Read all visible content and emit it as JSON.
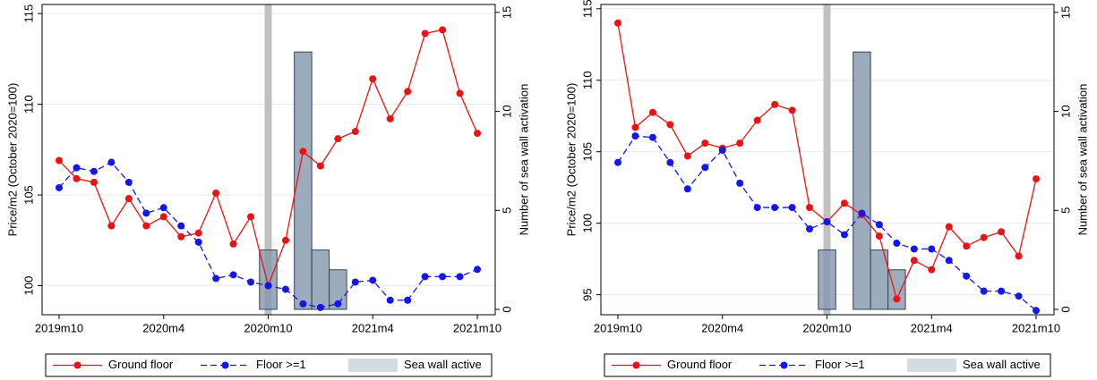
{
  "chart_data": [
    {
      "type": "line",
      "categories": [
        "2019m10",
        null,
        null,
        null,
        null,
        null,
        "2020m4",
        null,
        null,
        null,
        null,
        null,
        "2020m10",
        null,
        null,
        null,
        null,
        null,
        "2021m4",
        null,
        null,
        null,
        null,
        null,
        "2021m10"
      ],
      "y_label": "Price/m2 (October 2020=100)",
      "y2_label": "Number of sea wall activation",
      "ylim": [
        98.4,
        115.5
      ],
      "yticks": [
        100,
        105,
        110,
        115
      ],
      "y2lim": [
        -0.27,
        15.4
      ],
      "y2ticks": [
        0,
        5,
        10,
        15
      ],
      "grid": true,
      "legend": "bottom",
      "highlight_category": 12,
      "highlight_color": "#c0c0c0",
      "series": [
        {
          "name": "Sea wall active",
          "type": "bar",
          "axis": "y2",
          "color": "#8497ad",
          "values": [
            null,
            null,
            null,
            null,
            null,
            null,
            null,
            null,
            null,
            null,
            null,
            null,
            3,
            null,
            13,
            3,
            2,
            null,
            null,
            null,
            null,
            null,
            null,
            null,
            null
          ]
        },
        {
          "name": "Ground floor",
          "type": "line",
          "color": "#ee1111",
          "dash": false,
          "values": [
            106.9,
            105.9,
            105.7,
            103.3,
            104.8,
            103.3,
            103.8,
            102.7,
            102.9,
            105.1,
            102.3,
            103.8,
            100.0,
            102.5,
            107.4,
            106.6,
            108.1,
            108.5,
            111.4,
            109.2,
            110.7,
            113.9,
            114.1,
            110.6,
            108.4
          ]
        },
        {
          "name": "Floor >=1",
          "type": "line",
          "color": "#1515ee",
          "dash": true,
          "values": [
            105.4,
            106.5,
            106.3,
            106.8,
            105.7,
            104.0,
            104.3,
            103.3,
            102.4,
            100.4,
            100.6,
            100.2,
            100.0,
            99.8,
            99.0,
            98.8,
            99.0,
            100.2,
            100.3,
            99.2,
            99.2,
            100.5,
            100.5,
            100.5,
            100.9
          ]
        }
      ]
    },
    {
      "type": "line",
      "categories": [
        "2019m10",
        null,
        null,
        null,
        null,
        null,
        "2020m4",
        null,
        null,
        null,
        null,
        null,
        "2020m10",
        null,
        null,
        null,
        null,
        null,
        "2021m4",
        null,
        null,
        null,
        null,
        null,
        "2021m10"
      ],
      "y_label": "Price/m2 (October 2020=100)",
      "y2_label": "Number of sea wall activation",
      "ylim": [
        93.6,
        115.3
      ],
      "yticks": [
        95,
        100,
        105,
        110,
        115
      ],
      "y2lim": [
        -0.27,
        15.4
      ],
      "y2ticks": [
        0,
        5,
        10,
        15
      ],
      "grid": true,
      "legend": "bottom",
      "highlight_category": 12,
      "highlight_color": "#c0c0c0",
      "series": [
        {
          "name": "Sea wall active",
          "type": "bar",
          "axis": "y2",
          "color": "#8497ad",
          "values": [
            null,
            null,
            null,
            null,
            null,
            null,
            null,
            null,
            null,
            null,
            null,
            null,
            3,
            null,
            13,
            3,
            2,
            null,
            null,
            null,
            null,
            null,
            null,
            null,
            null
          ]
        },
        {
          "name": "Ground floor",
          "type": "line",
          "color": "#ee1111",
          "dash": false,
          "values": [
            114.0,
            106.7,
            107.75,
            106.9,
            104.7,
            105.6,
            105.25,
            105.6,
            107.2,
            108.3,
            107.9,
            101.1,
            100.1,
            101.4,
            100.6,
            99.1,
            94.7,
            97.4,
            96.75,
            99.75,
            98.4,
            99.0,
            99.4,
            97.7,
            103.1
          ]
        },
        {
          "name": "Floor >=1",
          "type": "line",
          "color": "#1515ee",
          "dash": true,
          "values": [
            104.25,
            106.1,
            106.0,
            104.25,
            102.4,
            103.9,
            105.1,
            102.8,
            101.1,
            101.1,
            101.1,
            99.6,
            100.1,
            99.2,
            100.7,
            99.9,
            98.6,
            98.2,
            98.2,
            97.4,
            96.3,
            95.25,
            95.25,
            94.9,
            93.9
          ]
        }
      ]
    }
  ]
}
